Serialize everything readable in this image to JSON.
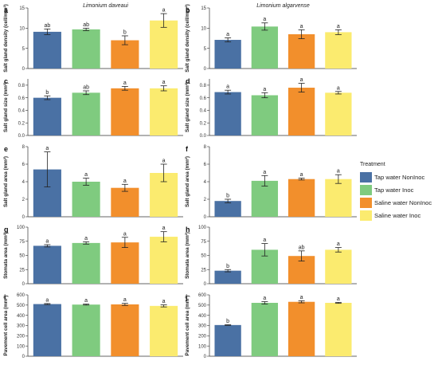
{
  "legend": {
    "title": "Treatment",
    "items": [
      {
        "label": "Tap water NonInoc",
        "color": "#4a71a4"
      },
      {
        "label": "Tap water Inoc",
        "color": "#7fcb7f"
      },
      {
        "label": "Saline water NonInoc",
        "color": "#f28f2c"
      },
      {
        "label": "Saline water Inoc",
        "color": "#fbeb6f"
      }
    ]
  },
  "chart_data": [
    {
      "panel": "a",
      "type": "bar",
      "title": "Limonium daveaui",
      "ylabel": "Salt gland density (cell/mm²)",
      "ylim": [
        0,
        15
      ],
      "yticks": [
        0,
        5,
        10,
        15
      ],
      "categories": [
        "Tap water NonInoc",
        "Tap water Inoc",
        "Saline water NonInoc",
        "Saline water Inoc"
      ],
      "values": [
        9.1,
        9.7,
        7.0,
        11.9
      ],
      "errors": [
        0.7,
        0.3,
        1.1,
        1.7
      ],
      "letters": [
        "ab",
        "ab",
        "b",
        "a"
      ]
    },
    {
      "panel": "b",
      "type": "bar",
      "title": "Limonium algarvense",
      "ylabel": "Salt gland density (cell/mm²)",
      "ylim": [
        0,
        15
      ],
      "yticks": [
        0,
        5,
        10,
        15
      ],
      "categories": [
        "Tap water NonInoc",
        "Tap water Inoc",
        "Saline water NonInoc",
        "Saline water Inoc"
      ],
      "values": [
        7.1,
        10.4,
        8.5,
        9.0
      ],
      "errors": [
        0.5,
        0.9,
        1.1,
        0.6
      ],
      "letters": [
        "a",
        "a",
        "a",
        "a"
      ]
    },
    {
      "panel": "c",
      "type": "bar",
      "ylabel": "Salt gland size (mm²)",
      "ylim": [
        0,
        0.9
      ],
      "yticks": [
        0,
        0.2,
        0.4,
        0.6,
        0.8
      ],
      "categories": [
        "Tap water NonInoc",
        "Tap water Inoc",
        "Saline water NonInoc",
        "Saline water Inoc"
      ],
      "values": [
        0.6,
        0.68,
        0.75,
        0.75
      ],
      "errors": [
        0.03,
        0.03,
        0.03,
        0.04
      ],
      "letters": [
        "b",
        "ab",
        "a",
        "a"
      ]
    },
    {
      "panel": "d",
      "type": "bar",
      "ylabel": "Salt gland size (mm²)",
      "ylim": [
        0,
        0.9
      ],
      "yticks": [
        0,
        0.2,
        0.4,
        0.6,
        0.8
      ],
      "categories": [
        "Tap water NonInoc",
        "Tap water Inoc",
        "Saline water NonInoc",
        "Saline water Inoc"
      ],
      "values": [
        0.69,
        0.64,
        0.76,
        0.68
      ],
      "errors": [
        0.03,
        0.04,
        0.07,
        0.02
      ],
      "letters": [
        "a",
        "a",
        "a",
        "a"
      ]
    },
    {
      "panel": "e",
      "type": "bar",
      "ylabel": "Salt gland area (mm²)",
      "ylim": [
        0,
        8
      ],
      "yticks": [
        0,
        2,
        4,
        6,
        8
      ],
      "categories": [
        "Tap water NonInoc",
        "Tap water Inoc",
        "Saline water NonInoc",
        "Saline water Inoc"
      ],
      "values": [
        5.4,
        4.0,
        3.3,
        5.0
      ],
      "errors": [
        2.0,
        0.4,
        0.4,
        1.0
      ],
      "letters": [
        "a",
        "a",
        "a",
        "a"
      ]
    },
    {
      "panel": "f",
      "type": "bar",
      "ylabel": "Salt gland area (mm²)",
      "ylim": [
        0,
        8
      ],
      "yticks": [
        0,
        2,
        4,
        6,
        8
      ],
      "categories": [
        "Tap water NonInoc",
        "Tap water Inoc",
        "Saline water NonInoc",
        "Saline water Inoc"
      ],
      "values": [
        1.8,
        4.1,
        4.3,
        4.3
      ],
      "errors": [
        0.2,
        0.6,
        0.1,
        0.5
      ],
      "letters": [
        "b",
        "a",
        "a",
        "a"
      ]
    },
    {
      "panel": "g",
      "type": "bar",
      "ylabel": "Stomata area (mm²)",
      "ylim": [
        0,
        100
      ],
      "yticks": [
        0,
        25,
        50,
        75,
        100
      ],
      "categories": [
        "Tap water NonInoc",
        "Tap water Inoc",
        "Saline water NonInoc",
        "Saline water Inoc"
      ],
      "values": [
        67,
        72,
        73,
        83
      ],
      "errors": [
        2,
        2,
        9,
        9
      ],
      "letters": [
        "a",
        "a",
        "a",
        "a"
      ]
    },
    {
      "panel": "h",
      "type": "bar",
      "ylabel": "Stomata area (mm²)",
      "ylim": [
        0,
        100
      ],
      "yticks": [
        0,
        25,
        50,
        75,
        100
      ],
      "categories": [
        "Tap water NonInoc",
        "Tap water Inoc",
        "Saline water NonInoc",
        "Saline water Inoc"
      ],
      "values": [
        23,
        60,
        49,
        60
      ],
      "errors": [
        2,
        11,
        9,
        4
      ],
      "letters": [
        "b",
        "a",
        "ab",
        "a"
      ]
    },
    {
      "panel": "i",
      "type": "bar",
      "ylabel": "Pavement cell area (mm²)",
      "ylim": [
        0,
        600
      ],
      "yticks": [
        0,
        100,
        200,
        300,
        400,
        500,
        600
      ],
      "categories": [
        "Tap water NonInoc",
        "Tap water Inoc",
        "Saline water NonInoc",
        "Saline water Inoc"
      ],
      "values": [
        510,
        505,
        507,
        492
      ],
      "errors": [
        5,
        5,
        10,
        10
      ],
      "letters": [
        "a",
        "a",
        "a",
        "a"
      ]
    },
    {
      "panel": "j",
      "type": "bar",
      "ylabel": "Pavement cell area (mm²)",
      "ylim": [
        0,
        600
      ],
      "yticks": [
        0,
        100,
        200,
        300,
        400,
        500,
        600
      ],
      "categories": [
        "Tap water NonInoc",
        "Tap water Inoc",
        "Saline water NonInoc",
        "Saline water Inoc"
      ],
      "values": [
        305,
        522,
        532,
        522
      ],
      "errors": [
        3,
        12,
        10,
        5
      ],
      "letters": [
        "b",
        "a",
        "a",
        "a"
      ]
    }
  ]
}
